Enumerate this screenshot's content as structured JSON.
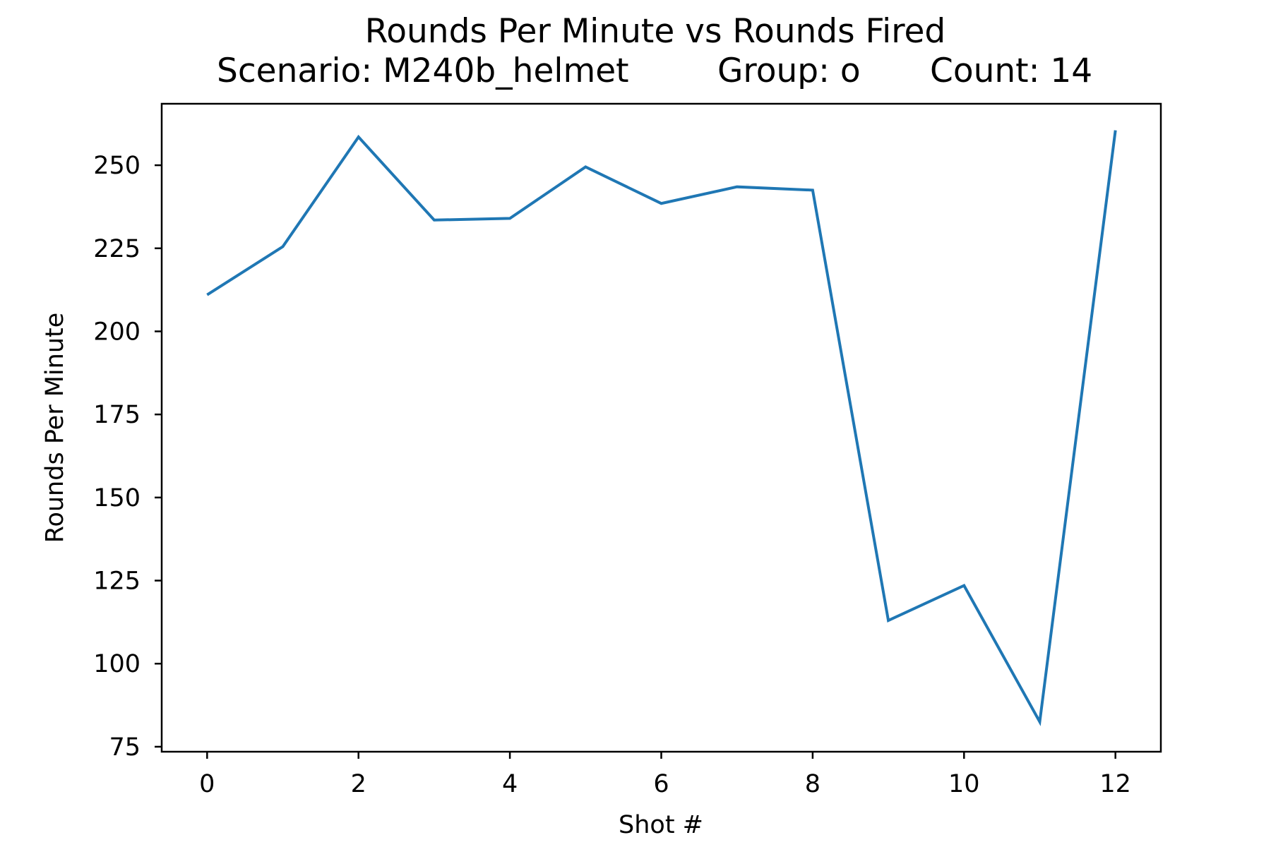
{
  "chart_data": {
    "type": "line",
    "title": "Rounds Per Minute vs Rounds Fired",
    "subtitle": {
      "scenario": "Scenario: M240b_helmet",
      "group": "Group: o",
      "count": "Count: 14"
    },
    "xlabel": "Shot #",
    "ylabel": "Rounds Per Minute",
    "xlim": [
      -0.6,
      12.6
    ],
    "ylim": [
      73.5,
      268.5
    ],
    "x_ticks": [
      0,
      2,
      4,
      6,
      8,
      10,
      12
    ],
    "y_ticks": [
      75,
      100,
      125,
      150,
      175,
      200,
      225,
      250
    ],
    "grid": false,
    "line_color": "#1f77b4",
    "series": [
      {
        "x": [
          0,
          1,
          2,
          3,
          4,
          5,
          6,
          7,
          8,
          9,
          10,
          11,
          12
        ],
        "values": [
          211,
          225.5,
          258.5,
          233.5,
          234,
          249.5,
          238.5,
          243.5,
          242.5,
          113,
          123.5,
          82.5,
          260.5
        ]
      }
    ]
  }
}
